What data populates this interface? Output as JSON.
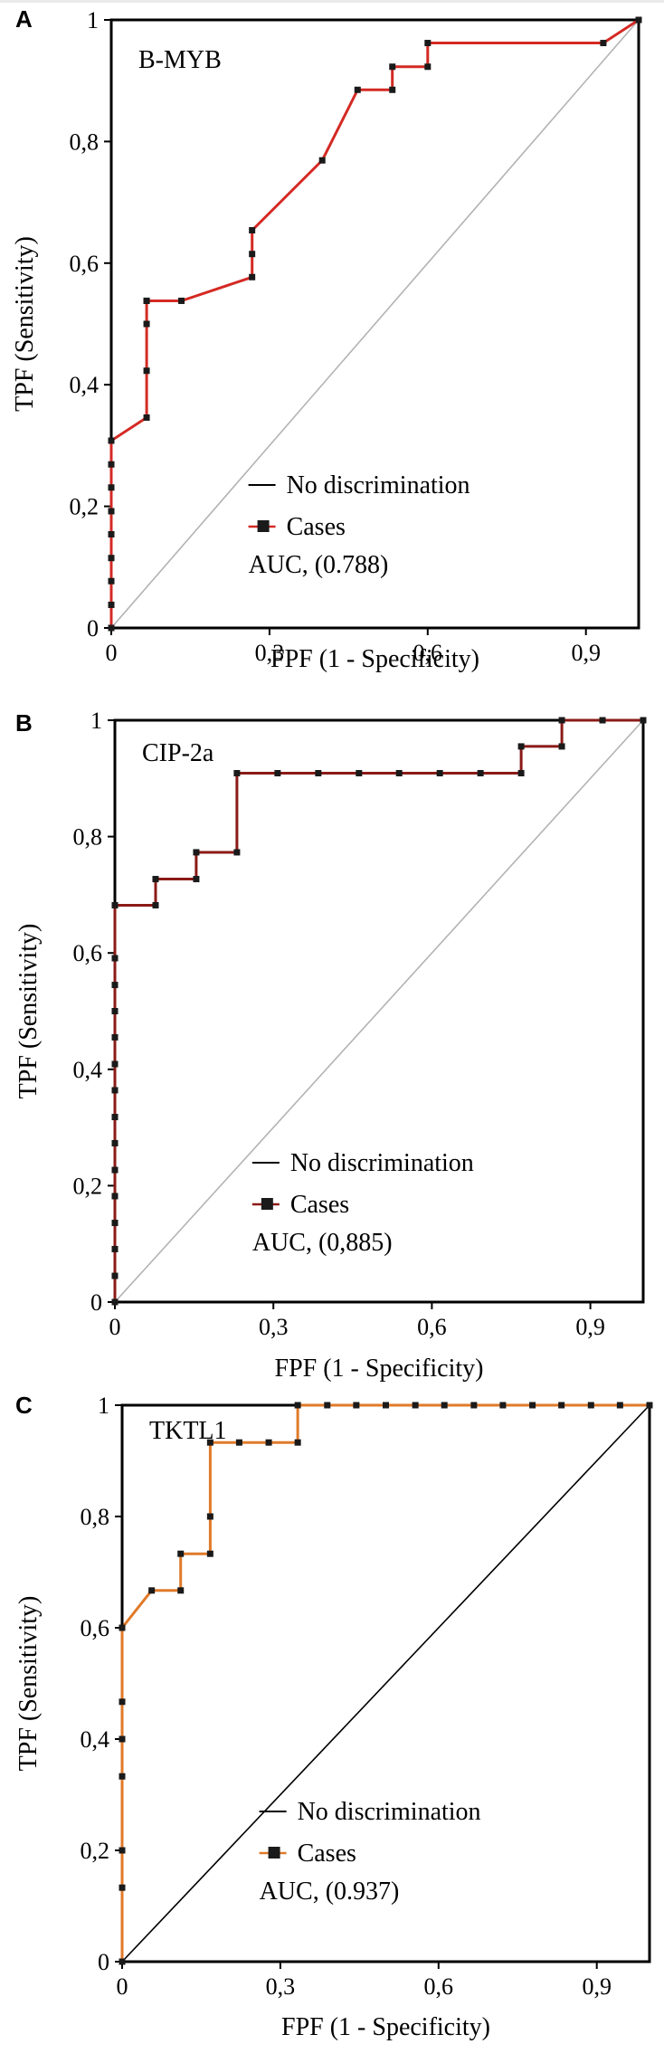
{
  "chart_data": [
    {
      "type": "line",
      "panel_label": "A",
      "title": "B-MYB",
      "xlabel": "FPF (1 - Specificity)",
      "ylabel": "TPF (Sensitivity)",
      "xlim": [
        0,
        1
      ],
      "ylim": [
        0,
        1
      ],
      "x_ticks": [
        "0",
        "0,3",
        "0,6",
        "0,9"
      ],
      "y_ticks": [
        "0",
        "0,2",
        "0,4",
        "0,6",
        "0,8",
        "1"
      ],
      "legend": {
        "placement": "bottom-right",
        "reference_label": "No discrimination",
        "series_label": "Cases",
        "auc_label": "AUC, (0.788)"
      },
      "colors": {
        "curve": "#d42a24",
        "marker": "#1a1a1a",
        "reference": "#b3b3b3"
      },
      "series": [
        {
          "name": "Cases",
          "x": [
            0,
            0,
            0,
            0,
            0,
            0,
            0,
            0,
            0,
            0.067,
            0.067,
            0.067,
            0.067,
            0.067,
            0.133,
            0.267,
            0.267,
            0.267,
            0.4,
            0.467,
            0.533,
            0.533,
            0.6,
            0.6,
            0.933,
            1
          ],
          "y": [
            0,
            0.038,
            0.077,
            0.115,
            0.154,
            0.192,
            0.231,
            0.269,
            0.308,
            0.346,
            0.423,
            0.5,
            0.538,
            0.538,
            0.538,
            0.577,
            0.615,
            0.654,
            0.769,
            0.885,
            0.885,
            0.923,
            0.923,
            0.962,
            0.962,
            1
          ]
        }
      ]
    },
    {
      "type": "line",
      "panel_label": "B",
      "title": "CIP-2a",
      "xlabel": "FPF (1 - Specificity)",
      "ylabel": "TPF (Sensitivity)",
      "xlim": [
        0,
        1
      ],
      "ylim": [
        0,
        1
      ],
      "x_ticks": [
        "0",
        "0,3",
        "0,6",
        "0,9"
      ],
      "y_ticks": [
        "0",
        "0,2",
        "0,4",
        "0,6",
        "0,8",
        "1"
      ],
      "legend": {
        "placement": "bottom-right",
        "reference_label": "No discrimination",
        "series_label": "Cases",
        "auc_label": "AUC, (0,885)"
      },
      "colors": {
        "curve": "#8a1a16",
        "marker": "#1a1a1a",
        "reference": "#b3b3b3"
      },
      "series": [
        {
          "name": "Cases",
          "x": [
            0,
            0,
            0,
            0,
            0,
            0,
            0,
            0,
            0,
            0,
            0,
            0,
            0,
            0,
            0,
            0.077,
            0.077,
            0.154,
            0.154,
            0.231,
            0.231,
            0.308,
            0.385,
            0.462,
            0.538,
            0.615,
            0.692,
            0.769,
            0.769,
            0.846,
            0.846,
            0.923,
            1
          ],
          "y": [
            0,
            0.045,
            0.091,
            0.136,
            0.182,
            0.227,
            0.273,
            0.318,
            0.364,
            0.409,
            0.455,
            0.5,
            0.545,
            0.591,
            0.682,
            0.682,
            0.727,
            0.727,
            0.773,
            0.773,
            0.909,
            0.909,
            0.909,
            0.909,
            0.909,
            0.909,
            0.909,
            0.909,
            0.955,
            0.955,
            1,
            1,
            1
          ]
        }
      ]
    },
    {
      "type": "line",
      "panel_label": "C",
      "title": "TKTL1",
      "xlabel": "FPF (1 - Specificity)",
      "ylabel": "TPF (Sensitivity)",
      "xlim": [
        0,
        1
      ],
      "ylim": [
        0,
        1
      ],
      "x_ticks": [
        "0",
        "0,3",
        "0,6",
        "0,9"
      ],
      "y_ticks": [
        "0",
        "0,2",
        "0,4",
        "0,6",
        "0,8",
        "1"
      ],
      "legend": {
        "placement": "bottom-right",
        "reference_label": "No discrimination",
        "series_label": "Cases",
        "auc_label": "AUC, (0.937)"
      },
      "colors": {
        "curve": "#e07a2a",
        "marker": "#1a1a1a",
        "reference": "#000000"
      },
      "series": [
        {
          "name": "Cases",
          "x": [
            0,
            0,
            0,
            0,
            0,
            0,
            0,
            0.056,
            0.111,
            0.111,
            0.167,
            0.167,
            0.167,
            0.222,
            0.278,
            0.333,
            0.333,
            0.389,
            0.444,
            0.5,
            0.556,
            0.611,
            0.667,
            0.722,
            0.778,
            0.833,
            0.889,
            0.944,
            1
          ],
          "y": [
            0,
            0.133,
            0.2,
            0.333,
            0.4,
            0.467,
            0.6,
            0.667,
            0.667,
            0.733,
            0.733,
            0.8,
            0.933,
            0.933,
            0.933,
            0.933,
            1,
            1,
            1,
            1,
            1,
            1,
            1,
            1,
            1,
            1,
            1,
            1,
            1
          ]
        }
      ]
    }
  ]
}
